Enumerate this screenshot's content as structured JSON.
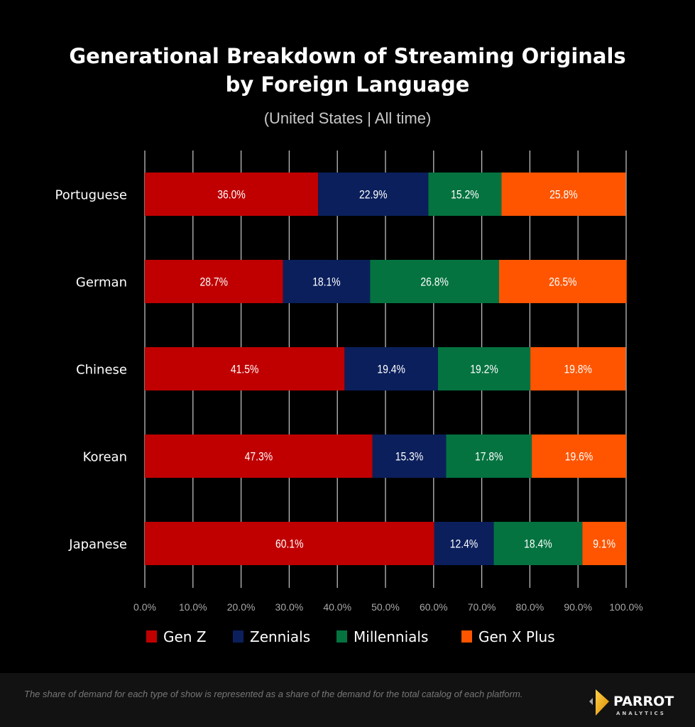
{
  "chart_data": {
    "type": "bar",
    "orientation": "horizontal",
    "stacked": true,
    "title": "Generational Breakdown of Streaming Originals by Foreign Language",
    "title_lines": [
      "Generational Breakdown of Streaming Originals",
      "by Foreign Language"
    ],
    "subtitle": "(United States  |  All time)",
    "categories": [
      "Portuguese",
      "German",
      "Chinese",
      "Korean",
      "Japanese"
    ],
    "series": [
      {
        "name": "Gen Z",
        "color": "#c00000",
        "values": [
          36.0,
          28.7,
          41.5,
          47.3,
          60.1
        ],
        "labels": [
          "36.0%",
          "28.7%",
          "41.5%",
          "47.3%",
          "60.1%"
        ]
      },
      {
        "name": "Zennials",
        "color": "#0b1f5c",
        "values": [
          22.9,
          18.1,
          19.4,
          15.3,
          12.4
        ],
        "labels": [
          "22.9%",
          "18.1%",
          "19.4%",
          "15.3%",
          "12.4%"
        ]
      },
      {
        "name": "Millennials",
        "color": "#047340",
        "values": [
          15.2,
          26.8,
          19.2,
          17.8,
          18.4
        ],
        "labels": [
          "15.2%",
          "26.8%",
          "19.2%",
          "17.8%",
          "18.4%"
        ]
      },
      {
        "name": "Gen X Plus",
        "color": "#ff5500",
        "values": [
          25.8,
          26.5,
          19.8,
          19.6,
          9.1
        ],
        "labels": [
          "25.8%",
          "26.5%",
          "19.8%",
          "19.6%",
          "9.1%"
        ]
      }
    ],
    "xlim": [
      0,
      100
    ],
    "xticks": [
      "0.0%",
      "10.0%",
      "20.0%",
      "30.0%",
      "40.0%",
      "50.0%",
      "60.0%",
      "70.0%",
      "80.0%",
      "90.0%",
      "100.0%"
    ],
    "grid": true,
    "legend_position": "bottom",
    "xlabel": "",
    "ylabel": ""
  },
  "footer": {
    "note": "The share of demand for each type of show is represented as a share of the demand for the total catalog of each platform.",
    "logo_text": "PARROT",
    "logo_subtext": "ANALYTICS"
  }
}
